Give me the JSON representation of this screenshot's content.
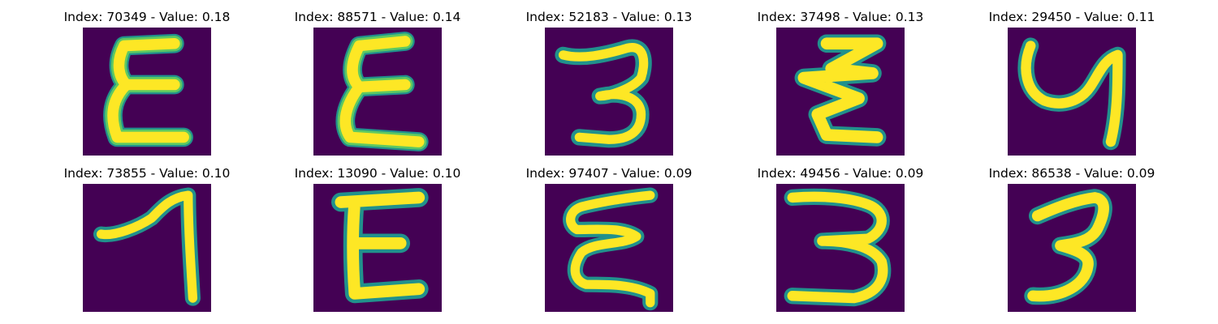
{
  "figure": {
    "colors": {
      "background": "#440154",
      "stroke": "#fde725",
      "edge": "#2fb47c",
      "outer": "#21918c"
    },
    "panels": [
      {
        "title": "Index: 70349 - Value: 0.18",
        "index": "70349",
        "value": "0.18",
        "glyph": "epsilon-like character"
      },
      {
        "title": "Index: 88571 - Value: 0.14",
        "index": "88571",
        "value": "0.14",
        "glyph": "epsilon-like character"
      },
      {
        "title": "Index: 52183 - Value: 0.13",
        "index": "52183",
        "value": "0.13",
        "glyph": "digit 3"
      },
      {
        "title": "Index: 37498 - Value: 0.13",
        "index": "37498",
        "value": "0.13",
        "glyph": "zigzag epsilon-like character"
      },
      {
        "title": "Index: 29450 - Value: 0.11",
        "index": "29450",
        "value": "0.11",
        "glyph": "rotated 4-like character"
      },
      {
        "title": "Index: 73855 - Value: 0.10",
        "index": "73855",
        "value": "0.10",
        "glyph": "digit 1 / 7-like character"
      },
      {
        "title": "Index: 13090 - Value: 0.10",
        "index": "13090",
        "value": "0.10",
        "glyph": "E-like character"
      },
      {
        "title": "Index: 97407 - Value: 0.09",
        "index": "97407",
        "value": "0.09",
        "glyph": "wavy epsilon-like character"
      },
      {
        "title": "Index: 49456 - Value: 0.09",
        "index": "49456",
        "value": "0.09",
        "glyph": "digit 3"
      },
      {
        "title": "Index: 86538 - Value: 0.09",
        "index": "86538",
        "value": "0.09",
        "glyph": "digit 3"
      }
    ]
  }
}
